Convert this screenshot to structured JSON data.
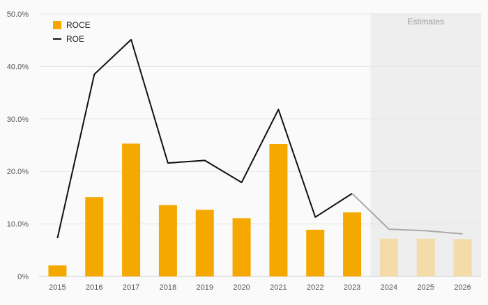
{
  "chart_data": {
    "type": "bar",
    "categories": [
      "2015",
      "2016",
      "2017",
      "2018",
      "2019",
      "2020",
      "2021",
      "2022",
      "2023",
      "2024",
      "2025",
      "2026"
    ],
    "series": [
      {
        "name": "ROCE",
        "kind": "bar",
        "values": [
          2.1,
          15.1,
          25.3,
          13.6,
          12.7,
          11.1,
          25.2,
          8.9,
          12.2,
          7.2,
          7.2,
          7.1
        ]
      },
      {
        "name": "ROE",
        "kind": "line",
        "values": [
          7.3,
          38.5,
          45.1,
          21.6,
          22.1,
          17.9,
          31.8,
          11.3,
          15.8,
          9.0,
          8.7,
          8.1
        ]
      }
    ],
    "estimate_start_index": 9,
    "estimates_label": "Estimates",
    "y_ticks": [
      "0%",
      "10.0%",
      "20.0%",
      "30.0%",
      "40.0%",
      "50.0%"
    ],
    "ylim": [
      0,
      50
    ],
    "grid": true,
    "legend_position": "top-left",
    "colors": {
      "bar": "#f5a800",
      "bar_estimate": "#f3dcaa",
      "line": "#111111",
      "line_estimate": "#a9a9a9",
      "estimate_band": "#eeeeee",
      "grid": "#e4e4e4",
      "axis_text": "#555555"
    }
  }
}
